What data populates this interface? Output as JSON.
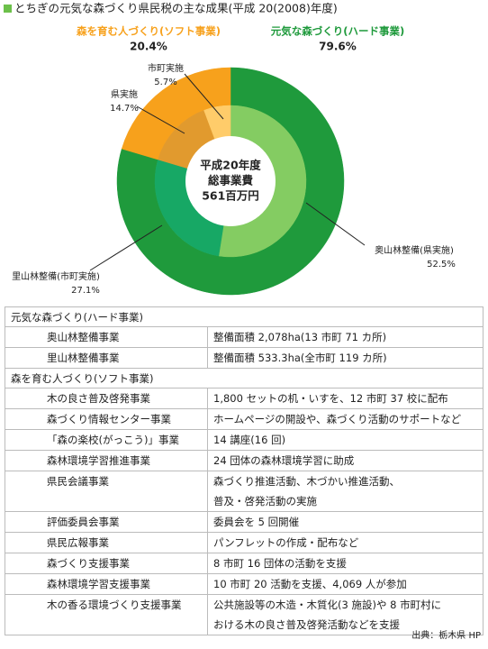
{
  "chart_data": {
    "type": "donut",
    "title": "とちぎの元気な森づくり県民税の主な成果(平成 20(2008)年度)",
    "center_label": [
      "平成20年度",
      "総事業費",
      "561百万円"
    ],
    "outer": {
      "categories": [
        "元気な森づくり(ハード事業)",
        "森を育む人づくり(ソフト事業)"
      ],
      "values": [
        79.6,
        20.4
      ],
      "value_labels": [
        "79.6%",
        "20.4%"
      ],
      "colors": [
        "#1f9a3c",
        "#f7a11c"
      ]
    },
    "inner": {
      "categories": [
        "奥山林整備(県実施)",
        "里山林整備(市町実施)",
        "県実施",
        "市町実施"
      ],
      "values": [
        52.5,
        27.1,
        14.7,
        5.7
      ],
      "value_labels": [
        "52.5%",
        "27.1%",
        "14.7%",
        "5.7%"
      ],
      "colors": [
        "#84cc62",
        "#17a865",
        "#e19a2e",
        "#ffcc6a"
      ]
    }
  },
  "table": {
    "sections": [
      {
        "title": "元気な森づくり(ハード事業)",
        "rows": [
          {
            "name": "奥山林整備事業",
            "desc": [
              "整備面積 2,078ha(13 市町 71 カ所)"
            ]
          },
          {
            "name": "里山林整備事業",
            "desc": [
              "整備面積 533.3ha(全市町 119 カ所)"
            ]
          }
        ]
      },
      {
        "title": "森を育む人づくり(ソフト事業)",
        "rows": [
          {
            "name": "木の良さ普及啓発事業",
            "desc": [
              "1,800 セットの机・いすを、12 市町 37 校に配布"
            ]
          },
          {
            "name": "森づくり情報センター事業",
            "desc": [
              "ホームページの開設や、森づくり活動のサポートなど"
            ]
          },
          {
            "name": "「森の楽校(がっこう)」事業",
            "desc": [
              "14 講座(16 回)"
            ]
          },
          {
            "name": "森林環境学習推進事業",
            "desc": [
              "24 団体の森林環境学習に助成"
            ]
          },
          {
            "name": "県民会議事業",
            "desc": [
              "森づくり推進活動、木づかい推進活動、",
              "普及・啓発活動の実施"
            ]
          },
          {
            "name": "評価委員会事業",
            "desc": [
              "委員会を 5 回開催"
            ]
          },
          {
            "name": "県民広報事業",
            "desc": [
              "パンフレットの作成・配布など"
            ]
          },
          {
            "name": "森づくり支援事業",
            "desc": [
              "8 市町 16 団体の活動を支援"
            ]
          },
          {
            "name": "森林環境学習支援事業",
            "desc": [
              "10 市町 20 活動を支援、4,069 人が参加"
            ]
          },
          {
            "name": "木の香る環境づくり支援事業",
            "desc": [
              "公共施設等の木造・木質化(3 施設)や 8 市町村に",
              "おける木の良さ普及啓発活動などを支援"
            ]
          }
        ]
      }
    ]
  },
  "source": "出典：栃木県 HP"
}
